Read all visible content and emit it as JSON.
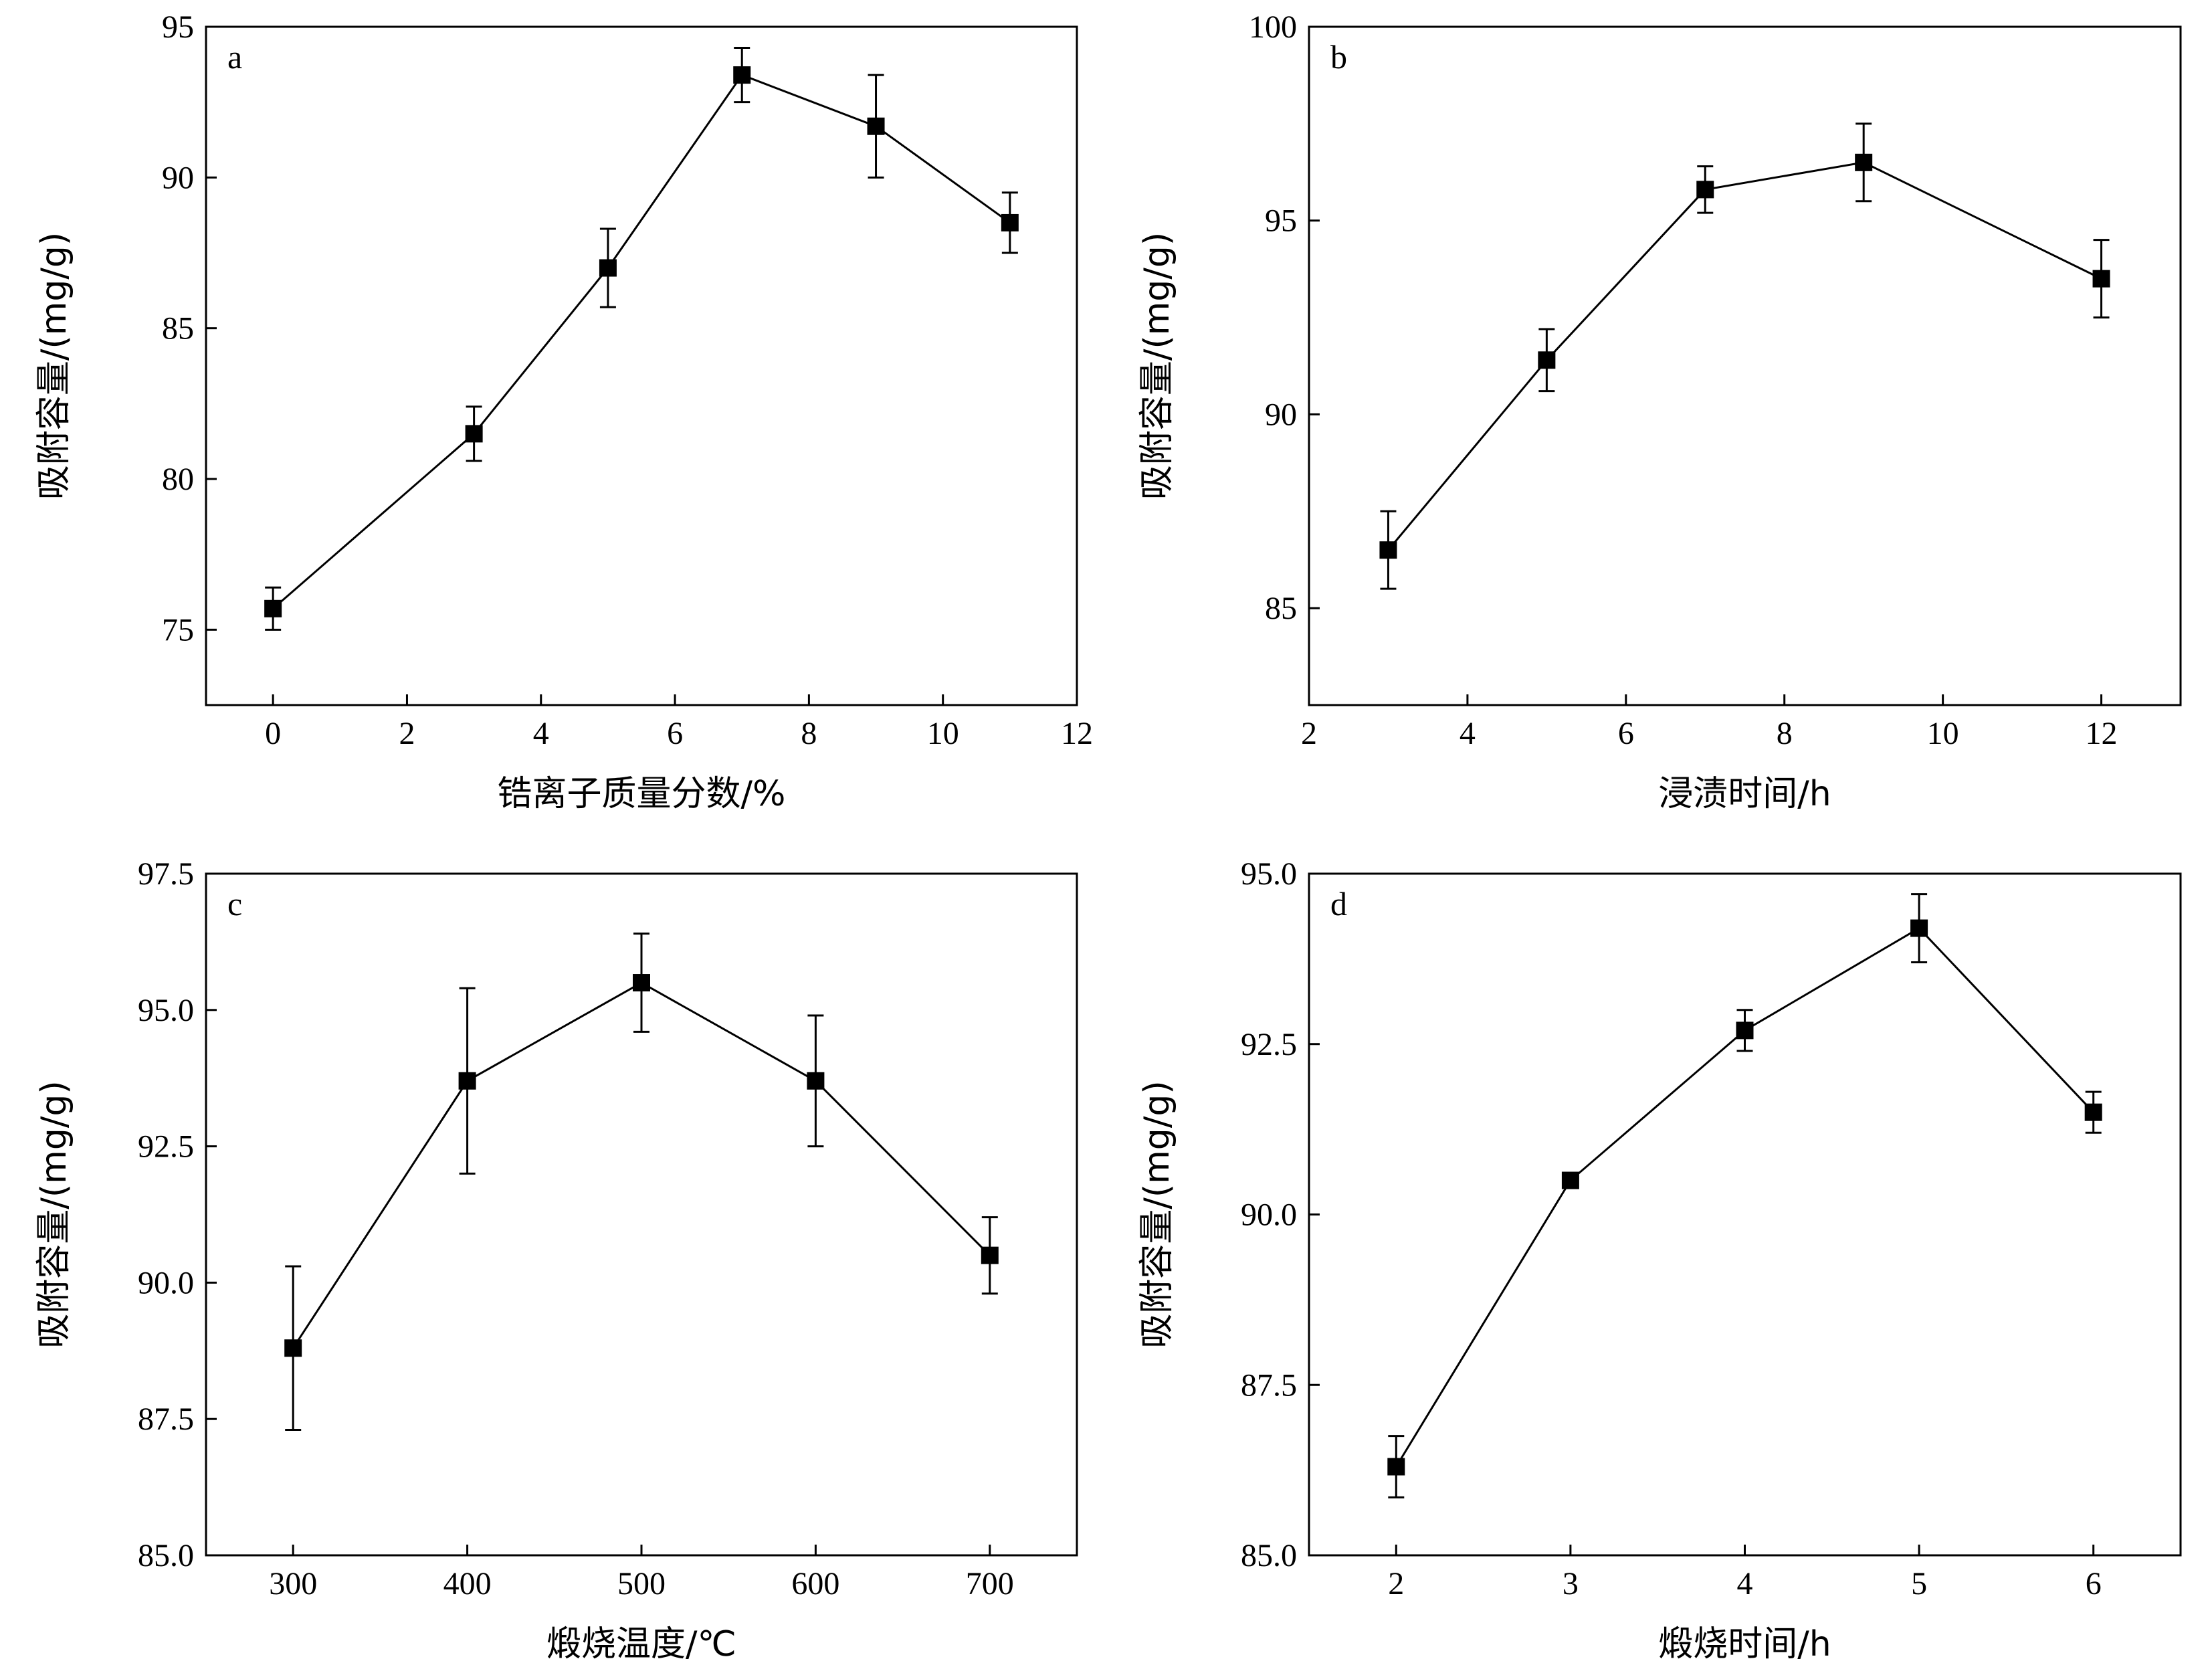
{
  "chart_data": [
    {
      "type": "line",
      "panel": "a",
      "xlabel": "锆离子质量分数/%",
      "ylabel": "吸附容量/(mg/g)",
      "xlim": [
        -1,
        12
      ],
      "ylim": [
        72.5,
        95
      ],
      "xticks": [
        "0",
        "2",
        "4",
        "6",
        "8",
        "10",
        "12"
      ],
      "yticks": [
        "75",
        "80",
        "85",
        "90",
        "95"
      ],
      "grid": false,
      "marker": "square",
      "series": [
        {
          "x": [
            0,
            3,
            5,
            7,
            9,
            11
          ],
          "y": [
            75.7,
            81.5,
            87.0,
            93.4,
            91.7,
            88.5
          ],
          "error": [
            0.7,
            0.9,
            1.3,
            0.9,
            1.7,
            1.0
          ]
        }
      ]
    },
    {
      "type": "line",
      "panel": "b",
      "xlabel": "浸渍时间/h",
      "ylabel": "吸附容量/(mg/g)",
      "xlim": [
        2,
        13
      ],
      "ylim": [
        82.5,
        100
      ],
      "xticks": [
        "2",
        "4",
        "6",
        "8",
        "10",
        "12"
      ],
      "yticks": [
        "85",
        "90",
        "95",
        "100"
      ],
      "grid": false,
      "marker": "square",
      "series": [
        {
          "x": [
            3,
            5,
            7,
            9,
            12
          ],
          "y": [
            86.5,
            91.4,
            95.8,
            96.5,
            93.5
          ],
          "error": [
            1.0,
            0.8,
            0.6,
            1.0,
            1.0
          ]
        }
      ]
    },
    {
      "type": "line",
      "panel": "c",
      "xlabel": "煅烧温度/℃",
      "ylabel": "吸附容量/(mg/g)",
      "xlim": [
        250,
        750
      ],
      "ylim": [
        85.0,
        97.5
      ],
      "xticks": [
        "300",
        "400",
        "500",
        "600",
        "700"
      ],
      "yticks": [
        "85.0",
        "87.5",
        "90.0",
        "92.5",
        "95.0",
        "97.5"
      ],
      "grid": false,
      "marker": "square",
      "series": [
        {
          "x": [
            300,
            400,
            500,
            600,
            700
          ],
          "y": [
            88.8,
            93.7,
            95.5,
            93.7,
            90.5
          ],
          "error": [
            1.5,
            1.7,
            0.9,
            1.2,
            0.7
          ]
        }
      ]
    },
    {
      "type": "line",
      "panel": "d",
      "xlabel": "煅烧时间/h",
      "ylabel": "吸附容量/(mg/g)",
      "xlim": [
        1.5,
        6.5
      ],
      "ylim": [
        85.0,
        95.0
      ],
      "xticks": [
        "2",
        "3",
        "4",
        "5",
        "6"
      ],
      "yticks": [
        "85.0",
        "87.5",
        "90.0",
        "92.5",
        "95.0"
      ],
      "grid": false,
      "marker": "square",
      "series": [
        {
          "x": [
            2,
            3,
            4,
            5,
            6
          ],
          "y": [
            86.3,
            90.5,
            92.7,
            94.2,
            91.5
          ],
          "error": [
            0.45,
            0.0,
            0.3,
            0.5,
            0.3
          ]
        }
      ]
    }
  ]
}
